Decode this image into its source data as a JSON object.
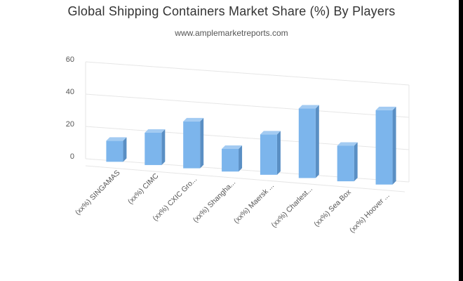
{
  "chart_data": {
    "type": "bar",
    "title": "Global Shipping Containers Market Share (%) By Players",
    "subtitle": "www.amplemarketreports.com",
    "categories": [
      "(xx%) SINGAMAS",
      "(xx%) CIMC",
      "(xx%) CXIC Gro...",
      "(xx%) Shangha...",
      "(xx%) Maersk ...",
      "(xx%) Charlest...",
      "(xx%) Sea Box",
      "(xx%) Hoover ..."
    ],
    "values": [
      13,
      20,
      29,
      14,
      25,
      43,
      22,
      46
    ],
    "ylim": [
      0,
      60
    ],
    "yticks": [
      "0",
      "20",
      "40",
      "60"
    ],
    "grid": true,
    "legend": "none",
    "colors": {
      "bar_front": "#7cb5ec",
      "bar_top": "#a3cbf2",
      "bar_side": "#5a8fc4",
      "grid": "#e6e6e6"
    }
  }
}
